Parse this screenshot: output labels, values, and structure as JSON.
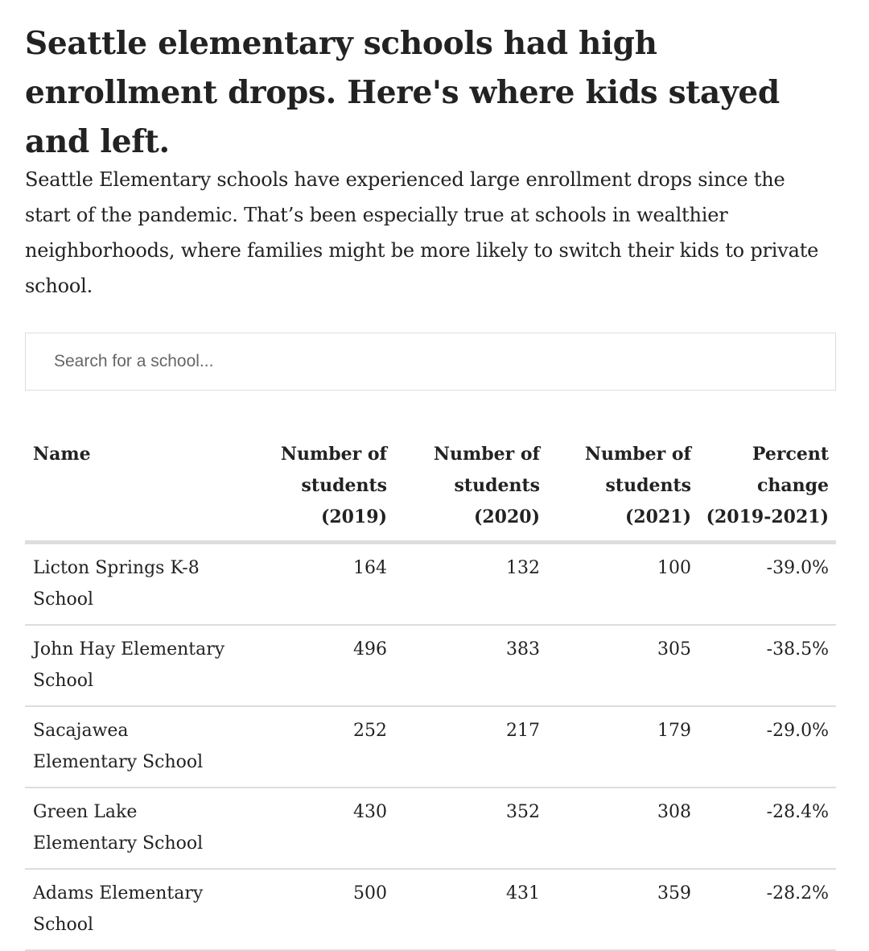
{
  "header": {
    "title": "Seattle elementary schools had high enrollment drops. Here's where kids stayed and left.",
    "subtitle": "Seattle Elementary schools have experienced large enrollment drops since the start of the pandemic. That’s been especially true at schools in wealthier neighborhoods, where families might be more likely to switch their kids to private school."
  },
  "search": {
    "placeholder": "Search for a school..."
  },
  "chart_data": {
    "type": "table",
    "title": "Seattle elementary schools had high enrollment drops. Here's where kids stayed and left.",
    "columns": [
      "Name",
      "Number of students (2019)",
      "Number of students (2020)",
      "Number of students (2021)",
      "Percent change (2019-2021)"
    ],
    "rows": [
      [
        "Licton Springs K-8 School",
        "164",
        "132",
        "100",
        "-39.0%"
      ],
      [
        "John Hay Elementary School",
        "496",
        "383",
        "305",
        "-38.5%"
      ],
      [
        "Sacajawea Elementary School",
        "252",
        "217",
        "179",
        "-29.0%"
      ],
      [
        "Green Lake Elementary School",
        "430",
        "352",
        "308",
        "-28.4%"
      ],
      [
        "Adams Elementary School",
        "500",
        "431",
        "359",
        "-28.2%"
      ]
    ]
  },
  "colors": {
    "text": "#222222",
    "border": "#dddddd",
    "placeholder": "#666666"
  }
}
